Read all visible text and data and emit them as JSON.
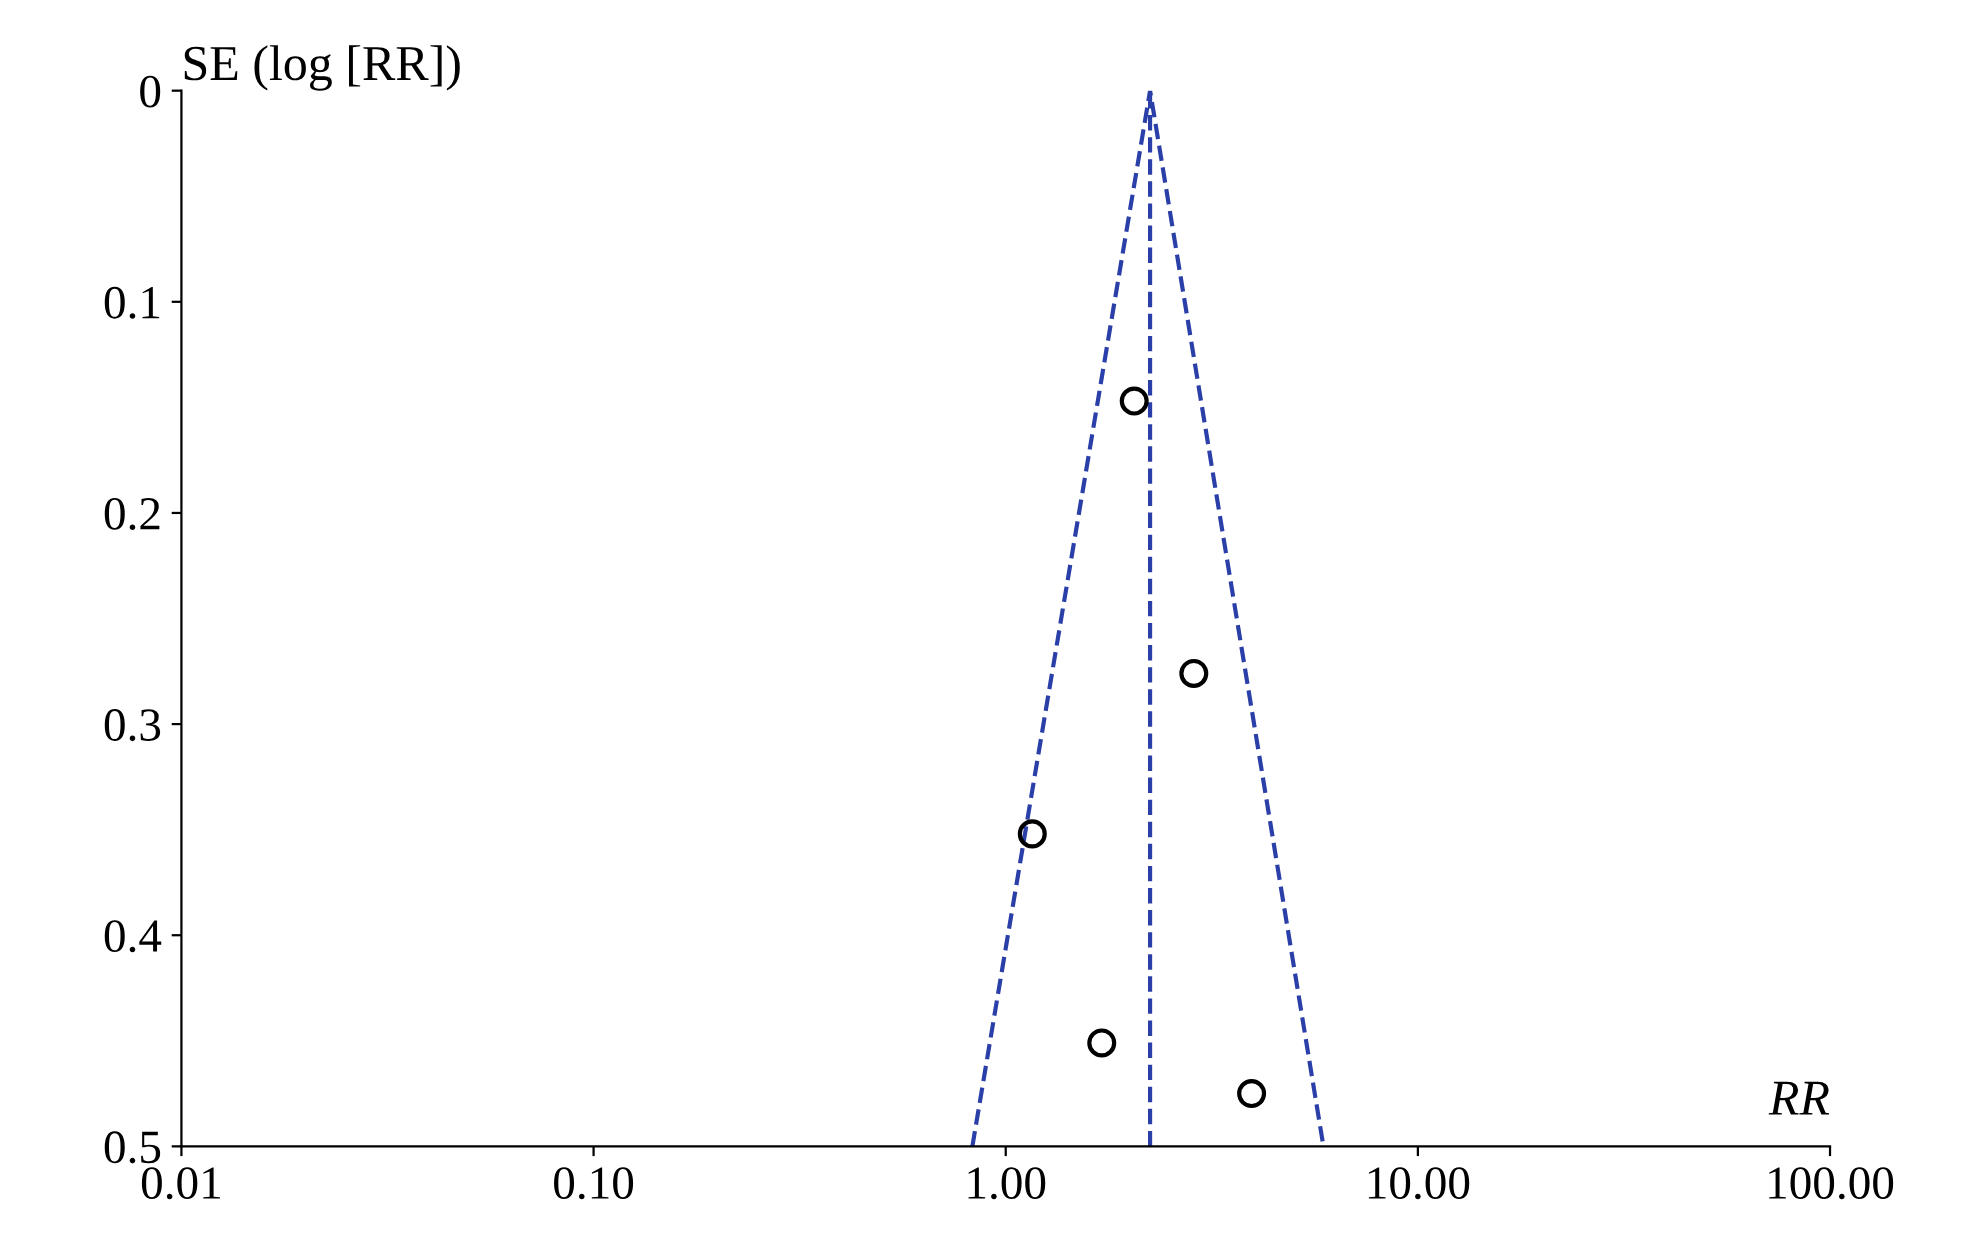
{
  "chart_data": {
    "type": "scatter",
    "xlabel": "RR",
    "ylabel": "SE (log [RR])",
    "log": "x",
    "xlim": [
      0.01,
      100
    ],
    "xticks": [
      {
        "value": 0.01,
        "label": "0.01"
      },
      {
        "value": 0.1,
        "label": "0.10"
      },
      {
        "value": 1,
        "label": "1.00"
      },
      {
        "value": 10,
        "label": "10.00"
      },
      {
        "value": 100,
        "label": "100.00"
      }
    ],
    "ylim": [
      0.5,
      0
    ],
    "yticks": [
      0,
      0.1,
      0.2,
      0.3,
      0.4,
      0.5
    ],
    "grid": false,
    "legend": false,
    "series": [
      {
        "color": "#000000",
        "marker": "circle",
        "x": [
          2.05,
          2.86,
          1.16,
          1.71,
          3.95
        ],
        "values": [
          0.147,
          0.276,
          0.352,
          0.451,
          0.475
        ]
      },
      {
        "type": "line",
        "color": "#2b3fa8",
        "marker": "none",
        "line_style": "dashed",
        "x": [
          0.83,
          2.24,
          5.9
        ],
        "values": [
          0.5,
          0,
          0.5
        ]
      }
    ],
    "ref_lines": [
      {
        "axis": "x",
        "value": 2.24,
        "color": "#2b3fa8",
        "line_style": "dashed"
      }
    ]
  }
}
